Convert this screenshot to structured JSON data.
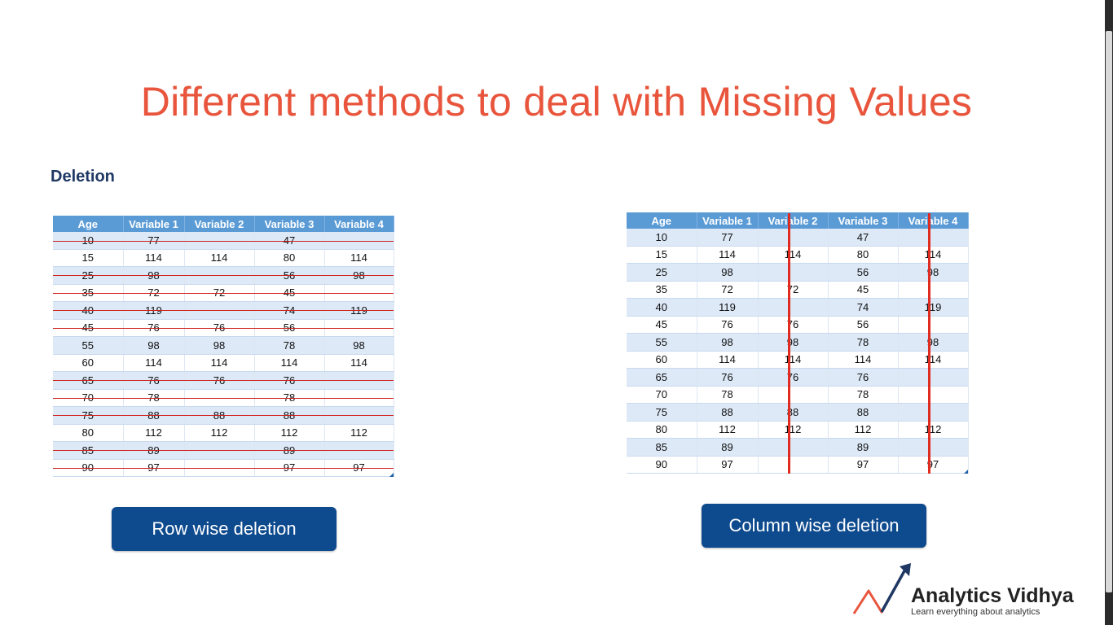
{
  "title": "Different methods to deal with Missing Values",
  "section": "Deletion",
  "headers": [
    "Age",
    "Variable 1",
    "Variable 2",
    "Variable 3",
    "Variable 4"
  ],
  "rows": [
    [
      "10",
      "77",
      "",
      "47",
      ""
    ],
    [
      "15",
      "114",
      "114",
      "80",
      "114"
    ],
    [
      "25",
      "98",
      "",
      "56",
      "98"
    ],
    [
      "35",
      "72",
      "72",
      "45",
      ""
    ],
    [
      "40",
      "119",
      "",
      "74",
      "119"
    ],
    [
      "45",
      "76",
      "76",
      "56",
      ""
    ],
    [
      "55",
      "98",
      "98",
      "78",
      "98"
    ],
    [
      "60",
      "114",
      "114",
      "114",
      "114"
    ],
    [
      "65",
      "76",
      "76",
      "76",
      ""
    ],
    [
      "70",
      "78",
      "",
      "78",
      ""
    ],
    [
      "75",
      "88",
      "88",
      "88",
      ""
    ],
    [
      "80",
      "112",
      "112",
      "112",
      "112"
    ],
    [
      "85",
      "89",
      "",
      "89",
      ""
    ],
    [
      "90",
      "97",
      "",
      "97",
      "97"
    ]
  ],
  "buttons": {
    "row": "Row wise deletion",
    "column": "Column wise deletion"
  },
  "logo": {
    "brand": "Analytics Vidhya",
    "tagline": "Learn everything about analytics"
  },
  "colors": {
    "title": "#e8553c",
    "header_bg": "#5b9bd5",
    "strike": "#d0201a",
    "button_bg": "#0d4a8e"
  }
}
